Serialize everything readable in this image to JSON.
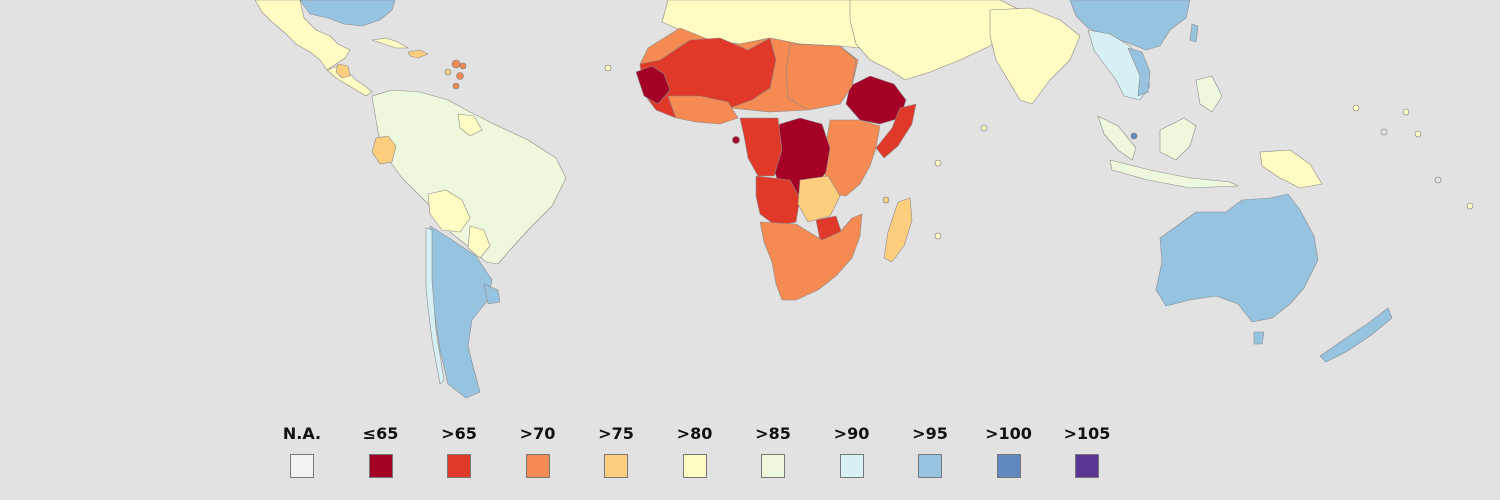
{
  "legend": {
    "items": [
      {
        "label": "N.A.",
        "color": "#f2f2f2"
      },
      {
        "label": "≤65",
        "color": "#a50026"
      },
      {
        "label": ">65",
        "color": "#e0392a"
      },
      {
        "label": ">70",
        "color": "#f58a52"
      },
      {
        "label": ">75",
        "color": "#fdce7e"
      },
      {
        "label": ">80",
        "color": "#fefcc2"
      },
      {
        "label": ">85",
        "color": "#eef8dc"
      },
      {
        "label": ">90",
        "color": "#d7f0f4"
      },
      {
        "label": ">95",
        "color": "#96c3df"
      },
      {
        "label": ">100",
        "color": "#6288c0"
      },
      {
        "label": ">105",
        "color": "#5a3594"
      }
    ]
  },
  "regions": [
    {
      "name": "north-america-region",
      "category": ">80"
    },
    {
      "name": "central-america-region",
      "category": ">80"
    },
    {
      "name": "south-america-region",
      "category": ">85"
    },
    {
      "name": "argentina-chile-region",
      "category": ">95"
    },
    {
      "name": "bolivia-region",
      "category": ">80"
    },
    {
      "name": "ecuador-region",
      "category": ">75"
    },
    {
      "name": "north-africa-region",
      "category": ">80"
    },
    {
      "name": "west-africa-region",
      "category": ">65"
    },
    {
      "name": "sahel-region",
      "category": ">70"
    },
    {
      "name": "horn-of-africa-region",
      "category": "≤65"
    },
    {
      "name": "central-africa-region",
      "category": "≤65"
    },
    {
      "name": "southern-africa-region",
      "category": ">70"
    },
    {
      "name": "madagascar-region",
      "category": ">75"
    },
    {
      "name": "middle-east-region",
      "category": ">80"
    },
    {
      "name": "south-asia-region",
      "category": ">80"
    },
    {
      "name": "east-asia-region",
      "category": ">95"
    },
    {
      "name": "southeast-asia-region",
      "category": ">85"
    },
    {
      "name": "australia-region",
      "category": ">95"
    },
    {
      "name": "new-zealand-region",
      "category": ">95"
    }
  ]
}
